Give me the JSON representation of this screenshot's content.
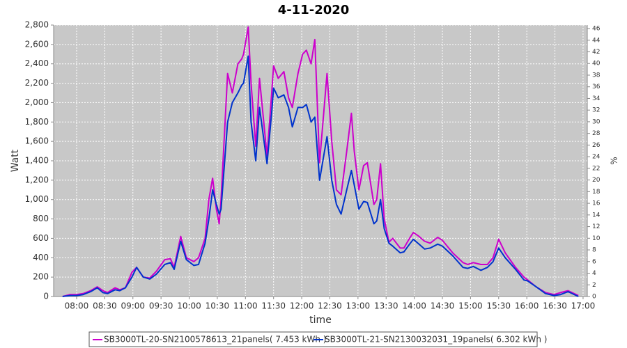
{
  "chart_data": {
    "type": "line",
    "title": "4-11-2020",
    "x_label": "time",
    "y_label": "Watt",
    "y2_label": "%",
    "x": [
      465,
      473,
      480,
      487,
      495,
      502,
      508,
      513,
      521,
      526,
      532,
      539,
      544,
      551,
      558,
      565,
      574,
      580,
      584,
      591,
      597,
      605,
      610,
      617,
      621,
      625,
      629,
      632,
      634,
      641,
      646,
      652,
      656,
      658,
      663,
      666,
      671,
      675,
      683,
      688,
      690,
      695,
      701,
      706,
      710,
      716,
      721,
      725,
      730,
      734,
      739,
      747,
      752,
      757,
      762,
      768,
      773,
      776,
      781,
      786,
      790,
      797,
      800,
      804,
      808,
      813,
      817,
      825,
      829,
      835,
      839,
      845,
      851,
      857,
      865,
      870,
      881,
      892,
      897,
      903,
      911,
      918,
      924,
      930,
      937,
      948,
      957,
      961,
      970,
      980,
      989,
      996,
      1004,
      1015
    ],
    "series": [
      {
        "name": "SB3000TL-20-SN2100578613_21panels( 7.453 kWh )",
        "color": "#cc00cc",
        "values": [
          0,
          20,
          20,
          30,
          60,
          100,
          60,
          40,
          90,
          70,
          90,
          250,
          300,
          200,
          190,
          260,
          380,
          390,
          300,
          620,
          400,
          360,
          400,
          600,
          1000,
          1220,
          900,
          750,
          1000,
          2300,
          2100,
          2400,
          2450,
          2500,
          2780,
          2200,
          1550,
          2250,
          1450,
          2100,
          2380,
          2250,
          2320,
          2050,
          1950,
          2300,
          2500,
          2540,
          2400,
          2650,
          1380,
          2300,
          1600,
          1100,
          1050,
          1500,
          1890,
          1500,
          1100,
          1350,
          1380,
          950,
          1000,
          1370,
          800,
          560,
          600,
          500,
          500,
          600,
          660,
          620,
          570,
          550,
          610,
          580,
          450,
          350,
          330,
          350,
          330,
          330,
          400,
          590,
          450,
          300,
          200,
          170,
          100,
          40,
          20,
          40,
          60,
          10
        ]
      },
      {
        "name": "SB3000TL-21-SN2130032031_19panels( 6.302 kWh )",
        "color": "#0033cc",
        "values": [
          0,
          10,
          10,
          20,
          50,
          90,
          40,
          30,
          70,
          60,
          90,
          200,
          300,
          200,
          180,
          230,
          330,
          350,
          280,
          570,
          380,
          320,
          330,
          550,
          800,
          1100,
          950,
          850,
          900,
          1800,
          2000,
          2100,
          2180,
          2200,
          2480,
          1800,
          1400,
          1950,
          1370,
          1900,
          2150,
          2050,
          2080,
          1950,
          1750,
          1950,
          1950,
          1980,
          1800,
          1850,
          1200,
          1650,
          1200,
          950,
          850,
          1100,
          1300,
          1150,
          900,
          980,
          970,
          750,
          780,
          1000,
          700,
          550,
          520,
          450,
          460,
          540,
          590,
          540,
          490,
          500,
          540,
          520,
          420,
          300,
          290,
          310,
          270,
          300,
          360,
          500,
          400,
          280,
          170,
          160,
          100,
          30,
          10,
          20,
          50,
          0
        ]
      }
    ],
    "xlim": [
      455.5,
      1024.5
    ],
    "xticks": [
      {
        "value": 480,
        "label": "08:00"
      },
      {
        "value": 510,
        "label": "08:30"
      },
      {
        "value": 540,
        "label": "09:00"
      },
      {
        "value": 570,
        "label": "09:30"
      },
      {
        "value": 600,
        "label": "10:00"
      },
      {
        "value": 630,
        "label": "10:30"
      },
      {
        "value": 660,
        "label": "11:00"
      },
      {
        "value": 690,
        "label": "11:30"
      },
      {
        "value": 720,
        "label": "12:00"
      },
      {
        "value": 750,
        "label": "12:30"
      },
      {
        "value": 780,
        "label": "13:00"
      },
      {
        "value": 810,
        "label": "13:30"
      },
      {
        "value": 840,
        "label": "14:00"
      },
      {
        "value": 870,
        "label": "14:30"
      },
      {
        "value": 900,
        "label": "15:00"
      },
      {
        "value": 930,
        "label": "15:30"
      },
      {
        "value": 960,
        "label": "16:00"
      },
      {
        "value": 990,
        "label": "16:30"
      },
      {
        "value": 1020,
        "label": "17:00"
      }
    ],
    "ylim": [
      0,
      2800
    ],
    "yticks": [
      0,
      200,
      400,
      600,
      800,
      {
        "value": 1000,
        "label": "1,000"
      },
      {
        "value": 1200,
        "label": "1,200"
      },
      {
        "value": 1400,
        "label": "1,400"
      },
      {
        "value": 1600,
        "label": "1,600"
      },
      {
        "value": 1800,
        "label": "1,800"
      },
      {
        "value": 2000,
        "label": "2,000"
      },
      {
        "value": 2200,
        "label": "2,200"
      },
      {
        "value": 2400,
        "label": "2,400"
      },
      {
        "value": 2600,
        "label": "2,600"
      },
      {
        "value": 2800,
        "label": "2,800"
      }
    ],
    "y2lim": [
      0,
      46.6
    ],
    "y2ticks": [
      0,
      2,
      4,
      6,
      8,
      10,
      12,
      14,
      16,
      18,
      20,
      22,
      24,
      26,
      28,
      30,
      32,
      34,
      36,
      38,
      40,
      42,
      44,
      46
    ],
    "grid": true
  }
}
